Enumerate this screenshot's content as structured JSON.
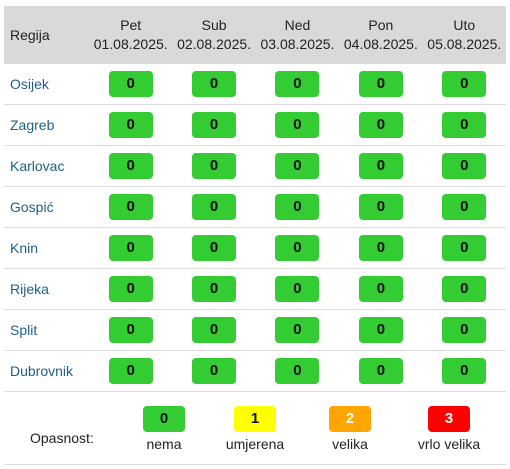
{
  "table": {
    "region_header": "Regija",
    "days": [
      {
        "day": "Pet",
        "date": "01.08.2025."
      },
      {
        "day": "Sub",
        "date": "02.08.2025."
      },
      {
        "day": "Ned",
        "date": "03.08.2025."
      },
      {
        "day": "Pon",
        "date": "04.08.2025."
      },
      {
        "day": "Uto",
        "date": "05.08.2025."
      }
    ],
    "rows": [
      {
        "region": "Osijek",
        "values": [
          "0",
          "0",
          "0",
          "0",
          "0"
        ]
      },
      {
        "region": "Zagreb",
        "values": [
          "0",
          "0",
          "0",
          "0",
          "0"
        ]
      },
      {
        "region": "Karlovac",
        "values": [
          "0",
          "0",
          "0",
          "0",
          "0"
        ]
      },
      {
        "region": "Gospić",
        "values": [
          "0",
          "0",
          "0",
          "0",
          "0"
        ]
      },
      {
        "region": "Knin",
        "values": [
          "0",
          "0",
          "0",
          "0",
          "0"
        ]
      },
      {
        "region": "Rijeka",
        "values": [
          "0",
          "0",
          "0",
          "0",
          "0"
        ]
      },
      {
        "region": "Split",
        "values": [
          "0",
          "0",
          "0",
          "0",
          "0"
        ]
      },
      {
        "region": "Dubrovnik",
        "values": [
          "0",
          "0",
          "0",
          "0",
          "0"
        ]
      }
    ]
  },
  "legend": {
    "title": "Opasnost:",
    "levels": [
      {
        "value": "0",
        "label": "nema",
        "color": "#33cc33",
        "text_color": "#111111"
      },
      {
        "value": "1",
        "label": "umjerena",
        "color": "#ffff00",
        "text_color": "#111111"
      },
      {
        "value": "2",
        "label": "velika",
        "color": "#ffa500",
        "text_color": "#ffffff"
      },
      {
        "value": "3",
        "label": "vrlo velika",
        "color": "#ff0000",
        "text_color": "#ffffff"
      }
    ]
  }
}
